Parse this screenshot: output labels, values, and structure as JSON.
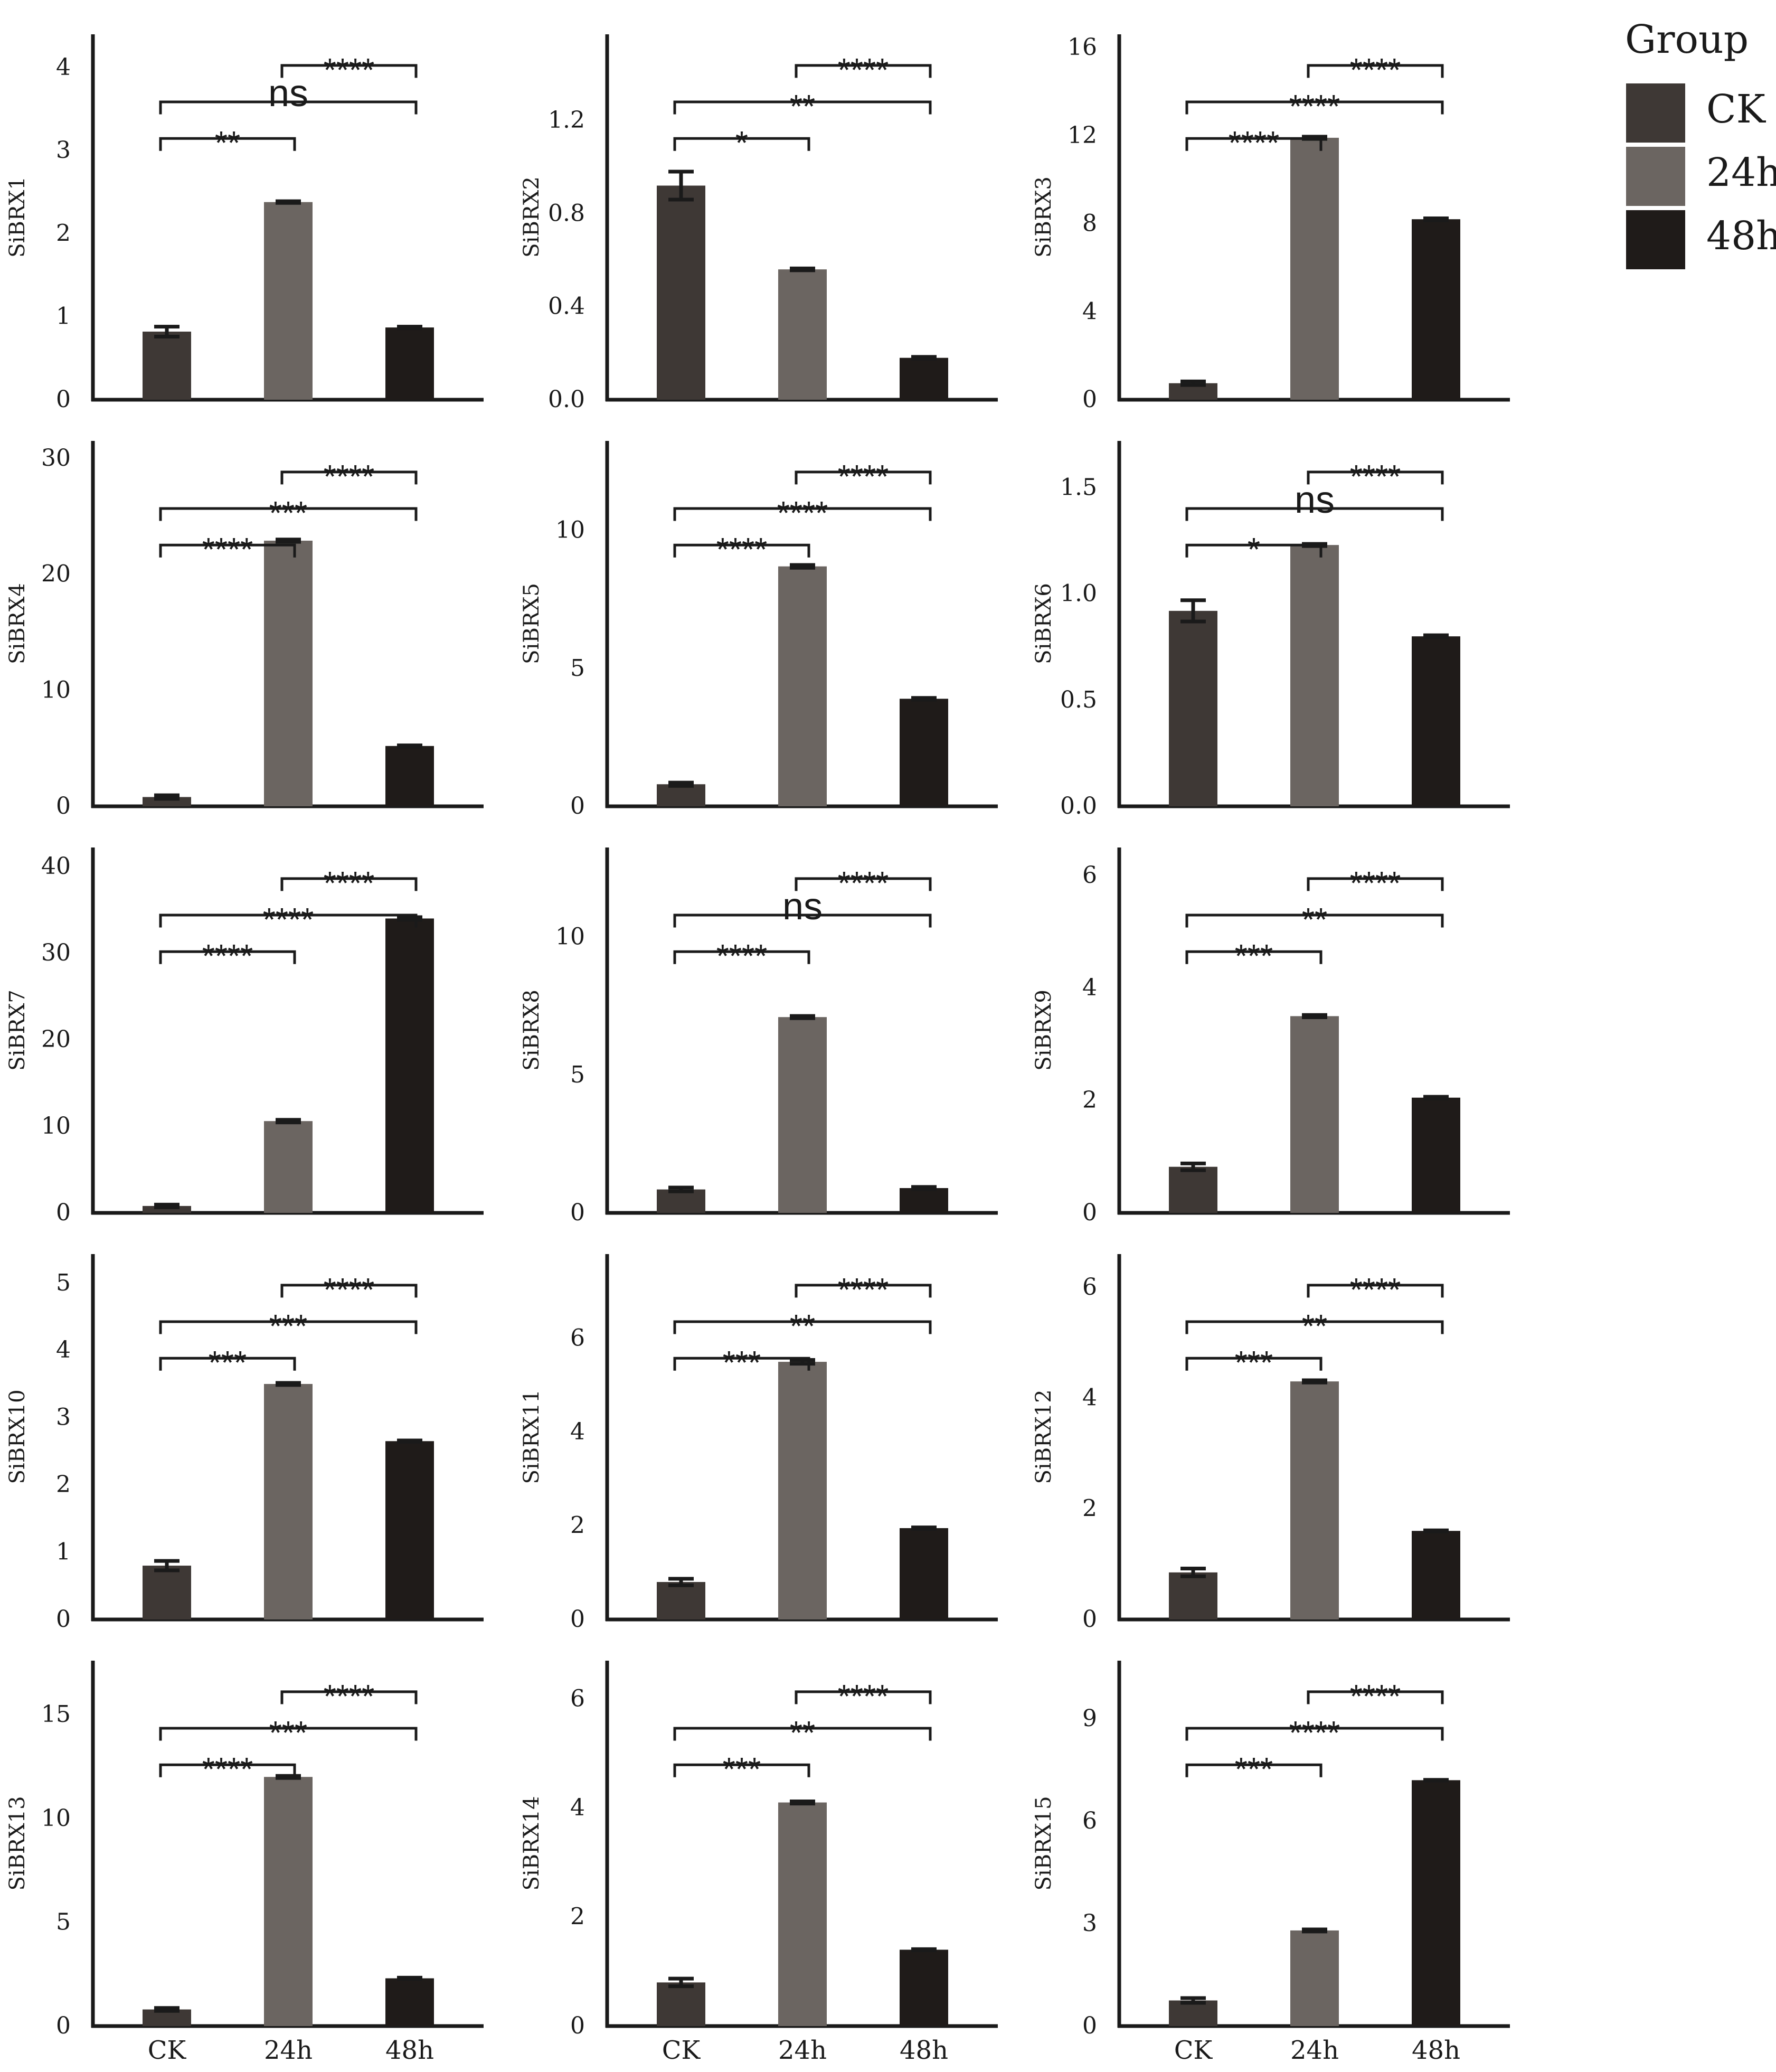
{
  "legend": {
    "title": "Group",
    "entries": [
      {
        "label": "CK",
        "color": "#3e3835"
      },
      {
        "label": "24h",
        "color": "#6b6561"
      },
      {
        "label": "48h",
        "color": "#1f1b19"
      }
    ]
  },
  "chart_data": [
    {
      "type": "bar",
      "ylabel": "SiBRX1",
      "categories": [
        "CK",
        "24h",
        "48h"
      ],
      "values": [
        0.82,
        2.38,
        0.87
      ],
      "errors": [
        0.06,
        0.01,
        0.01
      ],
      "ylim": [
        0,
        4.4
      ],
      "yticks": [
        0,
        1,
        2,
        3,
        4
      ],
      "ytick_labels": [
        "0",
        "1",
        "2",
        "3",
        "4"
      ],
      "show_xticks": false,
      "comparisons": [
        {
          "from": 0,
          "to": 1,
          "label": "**"
        },
        {
          "from": 0,
          "to": 2,
          "label": "ns"
        },
        {
          "from": 1,
          "to": 2,
          "label": "****"
        }
      ]
    },
    {
      "type": "bar",
      "ylabel": "SiBRX2",
      "categories": [
        "CK",
        "24h",
        "48h"
      ],
      "values": [
        0.92,
        0.56,
        0.18
      ],
      "errors": [
        0.06,
        0.004,
        0.004
      ],
      "ylim": [
        0,
        1.57
      ],
      "yticks": [
        0,
        0.4,
        0.8,
        1.2
      ],
      "ytick_labels": [
        "0.0",
        "0.4",
        "0.8",
        "1.2"
      ],
      "show_xticks": false,
      "comparisons": [
        {
          "from": 0,
          "to": 1,
          "label": "*"
        },
        {
          "from": 0,
          "to": 2,
          "label": "**"
        },
        {
          "from": 1,
          "to": 2,
          "label": "****"
        }
      ]
    },
    {
      "type": "bar",
      "ylabel": "SiBRX3",
      "categories": [
        "CK",
        "24h",
        "48h"
      ],
      "values": [
        0.75,
        11.9,
        8.2
      ],
      "errors": [
        0.08,
        0.05,
        0.04
      ],
      "ylim": [
        0,
        16.6
      ],
      "yticks": [
        0,
        4,
        8,
        12,
        16
      ],
      "ytick_labels": [
        "0",
        "4",
        "8",
        "12",
        "16"
      ],
      "show_xticks": false,
      "comparisons": [
        {
          "from": 0,
          "to": 1,
          "label": "****"
        },
        {
          "from": 0,
          "to": 2,
          "label": "****"
        },
        {
          "from": 1,
          "to": 2,
          "label": "****"
        }
      ]
    },
    {
      "type": "bar",
      "ylabel": "SiBRX4",
      "categories": [
        "CK",
        "24h",
        "48h"
      ],
      "values": [
        0.8,
        22.9,
        5.2
      ],
      "errors": [
        0.15,
        0.1,
        0.05
      ],
      "ylim": [
        0,
        31.5
      ],
      "yticks": [
        0,
        10,
        20,
        30
      ],
      "ytick_labels": [
        "0",
        "10",
        "20",
        "30"
      ],
      "show_xticks": false,
      "comparisons": [
        {
          "from": 0,
          "to": 1,
          "label": "****"
        },
        {
          "from": 0,
          "to": 2,
          "label": "***"
        },
        {
          "from": 1,
          "to": 2,
          "label": "****"
        }
      ]
    },
    {
      "type": "bar",
      "ylabel": "SiBRX5",
      "categories": [
        "CK",
        "24h",
        "48h"
      ],
      "values": [
        0.8,
        8.7,
        3.9
      ],
      "errors": [
        0.06,
        0.05,
        0.03
      ],
      "ylim": [
        0,
        13.25
      ],
      "yticks": [
        0,
        5,
        10
      ],
      "ytick_labels": [
        "0",
        "5",
        "10"
      ],
      "show_xticks": false,
      "comparisons": [
        {
          "from": 0,
          "to": 1,
          "label": "****"
        },
        {
          "from": 0,
          "to": 2,
          "label": "****"
        },
        {
          "from": 1,
          "to": 2,
          "label": "****"
        }
      ]
    },
    {
      "type": "bar",
      "ylabel": "SiBRX6",
      "categories": [
        "CK",
        "24h",
        "48h"
      ],
      "values": [
        0.92,
        1.23,
        0.8
      ],
      "errors": [
        0.05,
        0.005,
        0.005
      ],
      "ylim": [
        0,
        1.72
      ],
      "yticks": [
        0,
        0.5,
        1.0,
        1.5
      ],
      "ytick_labels": [
        "0.0",
        "0.5",
        "1.0",
        "1.5"
      ],
      "show_xticks": false,
      "comparisons": [
        {
          "from": 0,
          "to": 1,
          "label": "*"
        },
        {
          "from": 0,
          "to": 2,
          "label": "ns"
        },
        {
          "from": 1,
          "to": 2,
          "label": "****"
        }
      ]
    },
    {
      "type": "bar",
      "ylabel": "SiBRX7",
      "categories": [
        "CK",
        "24h",
        "48h"
      ],
      "values": [
        0.8,
        10.6,
        34.0
      ],
      "errors": [
        0.15,
        0.15,
        0.15
      ],
      "ylim": [
        0,
        42.2
      ],
      "yticks": [
        0,
        10,
        20,
        30,
        40
      ],
      "ytick_labels": [
        "0",
        "10",
        "20",
        "30",
        "40"
      ],
      "show_xticks": false,
      "comparisons": [
        {
          "from": 0,
          "to": 1,
          "label": "****"
        },
        {
          "from": 0,
          "to": 2,
          "label": "****"
        },
        {
          "from": 1,
          "to": 2,
          "label": "****"
        }
      ]
    },
    {
      "type": "bar",
      "ylabel": "SiBRX8",
      "categories": [
        "CK",
        "24h",
        "48h"
      ],
      "values": [
        0.85,
        7.1,
        0.9
      ],
      "errors": [
        0.07,
        0.04,
        0.04
      ],
      "ylim": [
        0,
        13.25
      ],
      "yticks": [
        0,
        5,
        10
      ],
      "ytick_labels": [
        "0",
        "5",
        "10"
      ],
      "show_xticks": false,
      "comparisons": [
        {
          "from": 0,
          "to": 1,
          "label": "****"
        },
        {
          "from": 0,
          "to": 2,
          "label": "ns"
        },
        {
          "from": 1,
          "to": 2,
          "label": "****"
        }
      ]
    },
    {
      "type": "bar",
      "ylabel": "SiBRX9",
      "categories": [
        "CK",
        "24h",
        "48h"
      ],
      "values": [
        0.82,
        3.5,
        2.05
      ],
      "errors": [
        0.06,
        0.02,
        0.015
      ],
      "ylim": [
        0,
        6.5
      ],
      "yticks": [
        0,
        2,
        4,
        6
      ],
      "ytick_labels": [
        "0",
        "2",
        "4",
        "6"
      ],
      "show_xticks": false,
      "comparisons": [
        {
          "from": 0,
          "to": 1,
          "label": "***"
        },
        {
          "from": 0,
          "to": 2,
          "label": "**"
        },
        {
          "from": 1,
          "to": 2,
          "label": "****"
        }
      ]
    },
    {
      "type": "bar",
      "ylabel": "SiBRX10",
      "categories": [
        "CK",
        "24h",
        "48h"
      ],
      "values": [
        0.8,
        3.5,
        2.65
      ],
      "errors": [
        0.07,
        0.015,
        0.01
      ],
      "ylim": [
        0,
        5.43
      ],
      "yticks": [
        0,
        1,
        2,
        3,
        4,
        5
      ],
      "ytick_labels": [
        "0",
        "1",
        "2",
        "3",
        "4",
        "5"
      ],
      "show_xticks": false,
      "comparisons": [
        {
          "from": 0,
          "to": 1,
          "label": "***"
        },
        {
          "from": 0,
          "to": 2,
          "label": "***"
        },
        {
          "from": 1,
          "to": 2,
          "label": "****"
        }
      ]
    },
    {
      "type": "bar",
      "ylabel": "SiBRX11",
      "categories": [
        "CK",
        "24h",
        "48h"
      ],
      "values": [
        0.8,
        5.5,
        1.95
      ],
      "errors": [
        0.07,
        0.04,
        0.015
      ],
      "ylim": [
        0,
        7.8
      ],
      "yticks": [
        0,
        2,
        4,
        6
      ],
      "ytick_labels": [
        "0",
        "2",
        "4",
        "6"
      ],
      "show_xticks": false,
      "comparisons": [
        {
          "from": 0,
          "to": 1,
          "label": "***"
        },
        {
          "from": 0,
          "to": 2,
          "label": "**"
        },
        {
          "from": 1,
          "to": 2,
          "label": "****"
        }
      ]
    },
    {
      "type": "bar",
      "ylabel": "SiBRX12",
      "categories": [
        "CK",
        "24h",
        "48h"
      ],
      "values": [
        0.85,
        4.3,
        1.6
      ],
      "errors": [
        0.07,
        0.02,
        0.01
      ],
      "ylim": [
        0,
        6.6
      ],
      "yticks": [
        0,
        2,
        4,
        6
      ],
      "ytick_labels": [
        "0",
        "2",
        "4",
        "6"
      ],
      "show_xticks": false,
      "comparisons": [
        {
          "from": 0,
          "to": 1,
          "label": "***"
        },
        {
          "from": 0,
          "to": 2,
          "label": "**"
        },
        {
          "from": 1,
          "to": 2,
          "label": "****"
        }
      ]
    },
    {
      "type": "bar",
      "ylabel": "SiBRX13",
      "categories": [
        "CK",
        "24h",
        "48h"
      ],
      "values": [
        0.8,
        12.0,
        2.3
      ],
      "errors": [
        0.07,
        0.05,
        0.03
      ],
      "ylim": [
        0,
        17.6
      ],
      "yticks": [
        0,
        5,
        10,
        15
      ],
      "ytick_labels": [
        "0",
        "5",
        "10",
        "15"
      ],
      "show_xticks": true,
      "comparisons": [
        {
          "from": 0,
          "to": 1,
          "label": "****"
        },
        {
          "from": 0,
          "to": 2,
          "label": "***"
        },
        {
          "from": 1,
          "to": 2,
          "label": "****"
        }
      ]
    },
    {
      "type": "bar",
      "ylabel": "SiBRX14",
      "categories": [
        "CK",
        "24h",
        "48h"
      ],
      "values": [
        0.8,
        4.1,
        1.4
      ],
      "errors": [
        0.07,
        0.02,
        0.01
      ],
      "ylim": [
        0,
        6.7
      ],
      "yticks": [
        0,
        2,
        4,
        6
      ],
      "ytick_labels": [
        "0",
        "2",
        "4",
        "6"
      ],
      "show_xticks": true,
      "comparisons": [
        {
          "from": 0,
          "to": 1,
          "label": "***"
        },
        {
          "from": 0,
          "to": 2,
          "label": "**"
        },
        {
          "from": 1,
          "to": 2,
          "label": "****"
        }
      ]
    },
    {
      "type": "bar",
      "ylabel": "SiBRX15",
      "categories": [
        "CK",
        "24h",
        "48h"
      ],
      "values": [
        0.75,
        2.8,
        7.2
      ],
      "errors": [
        0.07,
        0.03,
        0.01
      ],
      "ylim": [
        0,
        10.7
      ],
      "yticks": [
        0,
        3,
        6,
        9
      ],
      "ytick_labels": [
        "0",
        "3",
        "6",
        "9"
      ],
      "show_xticks": true,
      "comparisons": [
        {
          "from": 0,
          "to": 1,
          "label": "***"
        },
        {
          "from": 0,
          "to": 2,
          "label": "****"
        },
        {
          "from": 1,
          "to": 2,
          "label": "****"
        }
      ]
    }
  ]
}
